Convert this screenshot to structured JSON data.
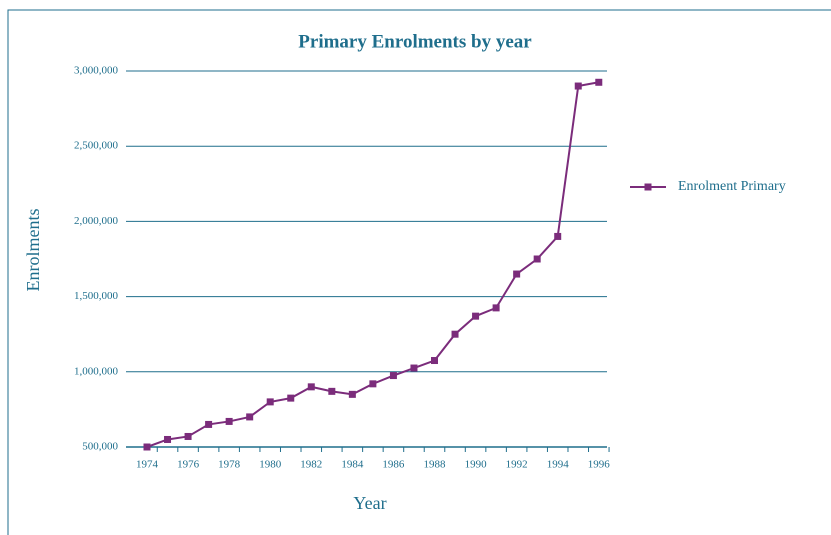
{
  "chart_data": {
    "type": "line",
    "title": "Primary Enrolments by year",
    "x_label": "Year",
    "y_label": "Enrolments",
    "categories": [
      "1974",
      null,
      "1976",
      null,
      "1978",
      null,
      "1980",
      null,
      "1982",
      null,
      "1984",
      null,
      "1986",
      null,
      "1988",
      null,
      "1990",
      null,
      "1992",
      null,
      "1994",
      null,
      "1996"
    ],
    "series": [
      {
        "name": "Enrolment Primary",
        "color": "#7b2c7b",
        "values": [
          500000,
          550000,
          570000,
          650000,
          670000,
          700000,
          800000,
          825000,
          900000,
          870000,
          850000,
          920000,
          975000,
          1025000,
          1075000,
          1250000,
          1370000,
          1425000,
          1650000,
          1750000,
          1900000,
          2900000,
          2925000
        ]
      }
    ],
    "ylim": [
      500000,
      3000000
    ],
    "yticks": [
      {
        "value": 500000,
        "label": "500,000"
      },
      {
        "value": 1000000,
        "label": "1,000,000"
      },
      {
        "value": 1500000,
        "label": "1,500,000"
      },
      {
        "value": 2000000,
        "label": "2,000,000"
      },
      {
        "value": 2500000,
        "label": "2,500,000"
      },
      {
        "value": 3000000,
        "label": "3,000,000"
      }
    ],
    "grid": true,
    "legend": "right"
  }
}
